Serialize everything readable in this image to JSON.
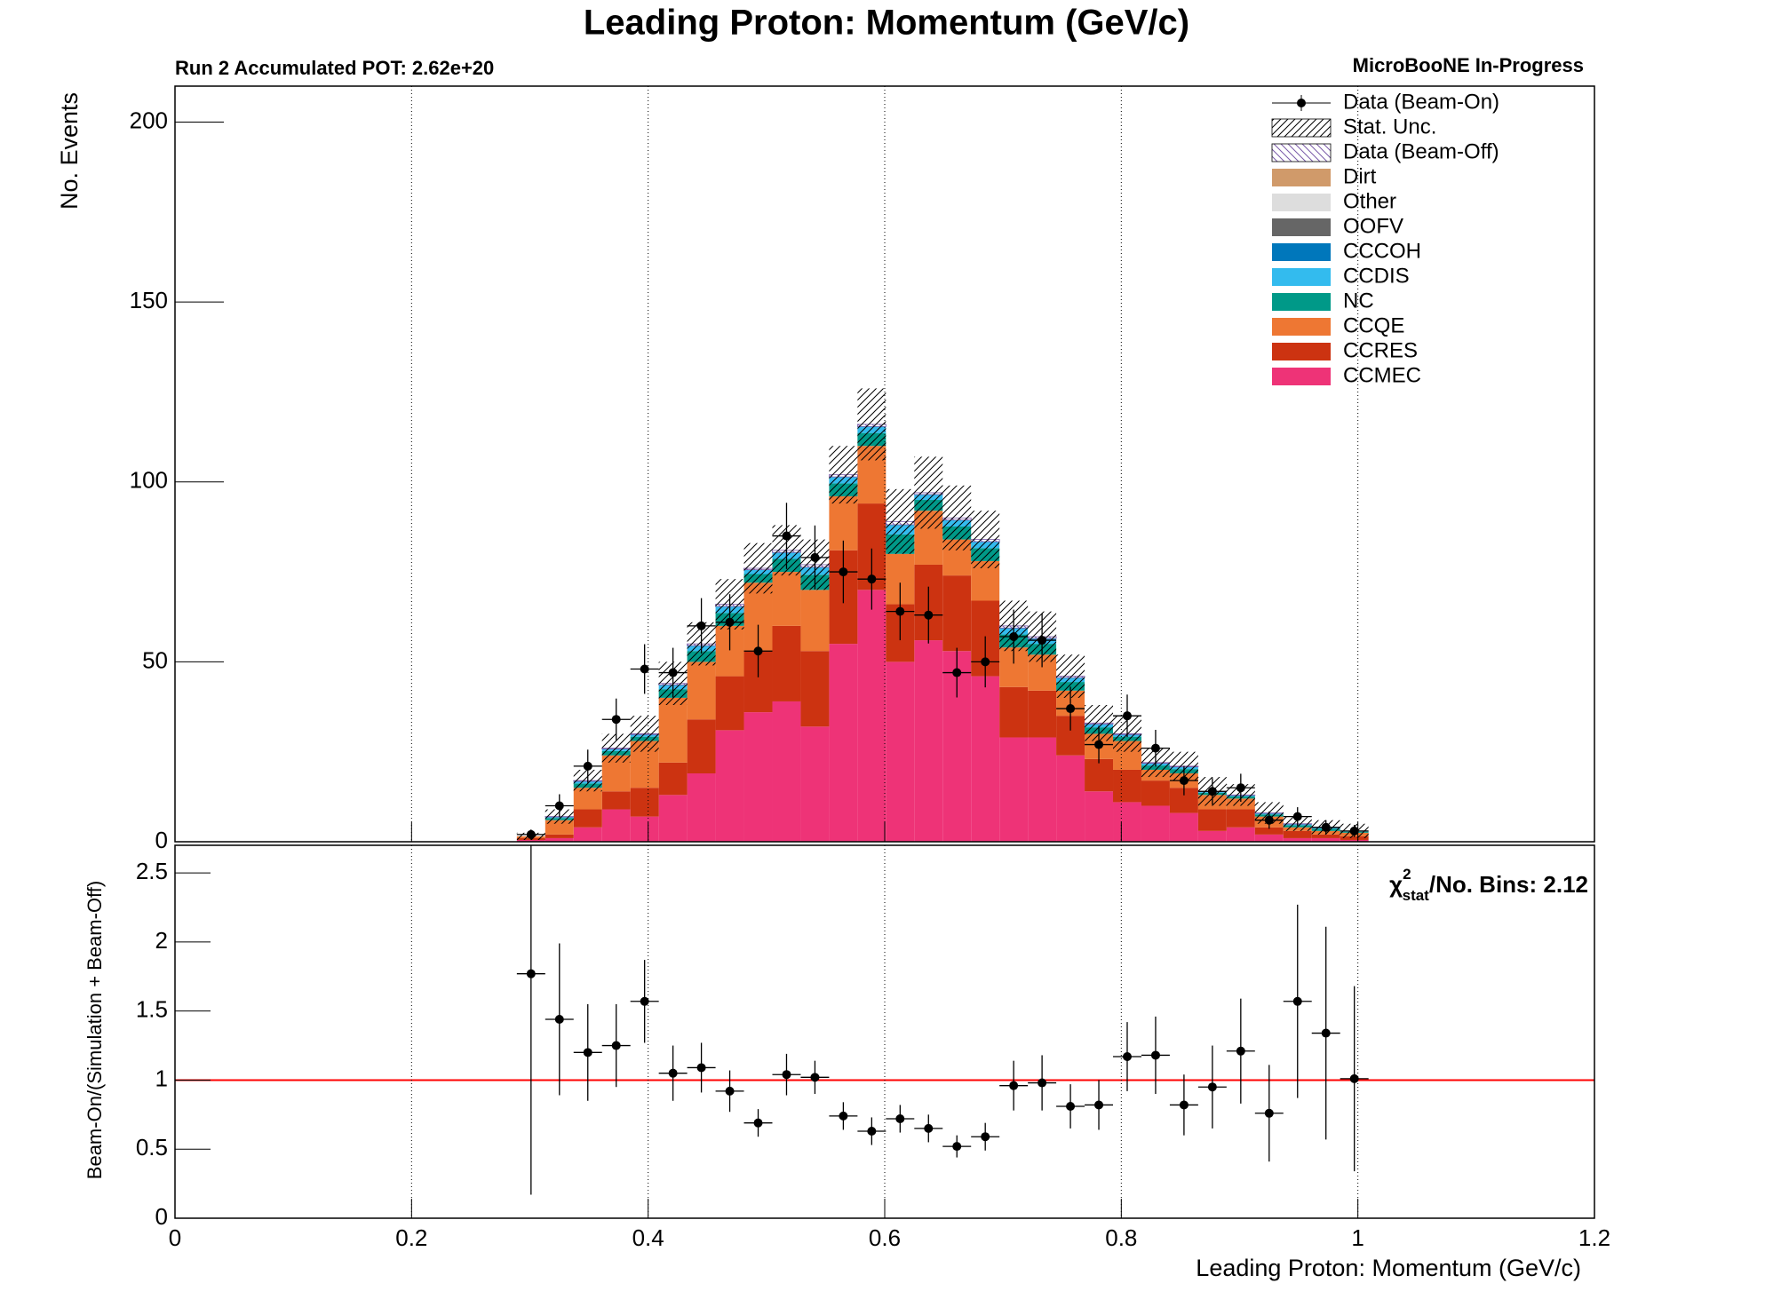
{
  "chart_data": {
    "type": "stacked_histogram",
    "title": "Leading Proton: Momentum (GeV/c)",
    "subtitle": "Run 2 Accumulated POT: 2.62e+20",
    "label": "MicroBooNE In-Progress",
    "xlabel": "Leading Proton: Momentum (GeV/c)",
    "ylabel": "No. Events",
    "xlim": [
      0,
      1.2
    ],
    "xticks": [
      0,
      0.2,
      0.4,
      0.6,
      0.8,
      1,
      1.2
    ],
    "ylim": [
      0,
      210
    ],
    "yticks": [
      0,
      50,
      100,
      150,
      200
    ],
    "grid": true,
    "bins": [
      0.289,
      0.313,
      0.337,
      0.361,
      0.385,
      0.409,
      0.433,
      0.457,
      0.481,
      0.505,
      0.529,
      0.553,
      0.577,
      0.601,
      0.625,
      0.649,
      0.673,
      0.697,
      0.721,
      0.745,
      0.769,
      0.793,
      0.817,
      0.841,
      0.865,
      0.889,
      0.913,
      0.937,
      0.961,
      0.985,
      1.009
    ],
    "series": [
      {
        "name": "CCMEC",
        "color": "#ee3377",
        "values": [
          0.5,
          1,
          4,
          9,
          7,
          13,
          19,
          31,
          36,
          39,
          32,
          55,
          70,
          50,
          56,
          53,
          46,
          29,
          29,
          24,
          14,
          11,
          10,
          8,
          3,
          4,
          2,
          1,
          1,
          0.5
        ]
      },
      {
        "name": "CCRES",
        "color": "#cc3311",
        "values": [
          0.5,
          1,
          5,
          5,
          8,
          9,
          15,
          15,
          17,
          21,
          21,
          26,
          24,
          16,
          21,
          21,
          21,
          14,
          13,
          11,
          9,
          9,
          7,
          7,
          6,
          5,
          2,
          2,
          1,
          1
        ]
      },
      {
        "name": "CCQE",
        "color": "#ee7733",
        "values": [
          0.5,
          4,
          6,
          10,
          13,
          18,
          16,
          14,
          19,
          15,
          17,
          15,
          16,
          14,
          15,
          10,
          11,
          11,
          10,
          7,
          7,
          8,
          3,
          4,
          4,
          3,
          3,
          1,
          1,
          1
        ]
      },
      {
        "name": "NC",
        "color": "#009988",
        "values": [
          0,
          0.6,
          1.2,
          1.2,
          1.2,
          2.4,
          3,
          3.6,
          2.4,
          3.6,
          4.2,
          3.6,
          3.6,
          5.4,
          3,
          3.6,
          3.6,
          3.6,
          3,
          2.4,
          1.8,
          1.2,
          1.2,
          1.2,
          0.6,
          0.6,
          0.6,
          0.6,
          0.6,
          0.3
        ]
      },
      {
        "name": "CCDIS",
        "color": "#33bbee",
        "values": [
          0,
          0.3,
          0.6,
          0.6,
          0.6,
          1.2,
          1.5,
          1.8,
          1.2,
          1.8,
          2.1,
          1.8,
          1.8,
          2.7,
          1.5,
          1.8,
          1.8,
          1.8,
          1.5,
          1.2,
          0.9,
          0.6,
          0.6,
          0.6,
          0.3,
          0.3,
          0.3,
          0.3,
          0.3,
          0.2
        ]
      },
      {
        "name": "CCCOH",
        "color": "#0077bb",
        "values": [
          0,
          0,
          0,
          0,
          0,
          0,
          0,
          0,
          0,
          0,
          0,
          0,
          0,
          0,
          0,
          0,
          0,
          0,
          0,
          0,
          0,
          0,
          0,
          0,
          0,
          0,
          0,
          0,
          0,
          0
        ]
      },
      {
        "name": "OOFV",
        "color": "#666666",
        "values": [
          0,
          0,
          0,
          0,
          0,
          0,
          0,
          0,
          0,
          0,
          0,
          0,
          0,
          0,
          0,
          0,
          0,
          0,
          0,
          0,
          0,
          0,
          0,
          0,
          0,
          0,
          0,
          0,
          0,
          0
        ]
      },
      {
        "name": "Other",
        "color": "#dddddd",
        "values": [
          0,
          0,
          0,
          0,
          0,
          0,
          0,
          0,
          0,
          0,
          0,
          0,
          0,
          0,
          0,
          0,
          0,
          0,
          0,
          0,
          0,
          0,
          0,
          0,
          0,
          0,
          0,
          0,
          0,
          0
        ]
      },
      {
        "name": "Dirt",
        "color": "#d09a6a",
        "values": [
          0,
          0,
          0,
          0,
          0,
          0,
          0,
          0,
          0,
          0,
          0,
          0,
          0,
          0,
          0,
          0,
          0,
          0,
          0,
          0,
          0,
          0,
          0,
          0,
          0,
          0,
          0,
          0,
          0,
          0
        ]
      },
      {
        "name": "Data (Beam-Off)",
        "color": "#7a5aa8",
        "pattern": "hatch",
        "values": [
          0,
          0.1,
          0.2,
          0.2,
          0.2,
          0.4,
          0.5,
          0.6,
          0.4,
          0.6,
          0.7,
          0.6,
          0.6,
          0.9,
          0.5,
          0.6,
          0.6,
          0.6,
          0.5,
          0.4,
          0.3,
          0.2,
          0.2,
          0.2,
          0.1,
          0.1,
          0.1,
          0.1,
          0.1,
          0
        ]
      }
    ],
    "stat_unc": {
      "name": "Stat. Unc.",
      "color": "#000000",
      "pattern": "hatch",
      "errors": [
        1,
        2,
        3,
        4,
        5,
        6,
        6,
        7,
        7,
        7,
        7,
        8,
        10,
        9,
        10,
        9,
        8,
        7,
        7,
        6,
        5,
        5,
        4,
        4,
        4,
        3,
        3,
        2,
        2,
        2
      ]
    },
    "data": {
      "name": "Data (Beam-On)",
      "color": "#000000",
      "values": [
        2,
        10,
        21,
        34,
        48,
        47,
        60,
        61,
        53,
        85,
        79,
        75,
        73,
        64,
        63,
        47,
        50,
        57,
        56,
        37,
        27,
        35,
        26,
        17,
        14,
        15,
        6,
        7,
        4,
        3
      ],
      "errors": [
        1.4,
        3.2,
        4.6,
        5.8,
        6.9,
        6.9,
        7.7,
        7.8,
        7.3,
        9.2,
        8.9,
        8.7,
        8.5,
        8,
        7.9,
        6.9,
        7.1,
        7.5,
        7.5,
        6.1,
        5.2,
        5.9,
        5.1,
        4.1,
        3.7,
        3.9,
        2.4,
        2.6,
        2,
        1.7
      ]
    },
    "ratio_panel": {
      "ylabel": "Beam-On/(Simulation + Beam-Off)",
      "ylim": [
        0,
        2.7
      ],
      "yticks": [
        0,
        0.5,
        1,
        1.5,
        2,
        2.5
      ],
      "reference": 1,
      "reference_color": "#ff0000",
      "chi2": {
        "symbol": "χ",
        "sup": "2",
        "sub": "stat",
        "text": "/No. Bins: 2.12"
      },
      "values": [
        1.77,
        1.44,
        1.2,
        1.25,
        1.57,
        1.05,
        1.09,
        0.92,
        0.69,
        1.04,
        1.02,
        0.74,
        0.63,
        0.72,
        0.65,
        0.52,
        0.59,
        0.96,
        0.98,
        0.81,
        0.82,
        1.17,
        1.18,
        0.82,
        0.95,
        1.21,
        0.76,
        1.57,
        1.34,
        1.01
      ],
      "errors": [
        1.6,
        0.55,
        0.35,
        0.3,
        0.3,
        0.2,
        0.18,
        0.15,
        0.1,
        0.15,
        0.12,
        0.1,
        0.1,
        0.1,
        0.1,
        0.08,
        0.1,
        0.18,
        0.2,
        0.16,
        0.18,
        0.25,
        0.28,
        0.22,
        0.3,
        0.38,
        0.35,
        0.7,
        0.77,
        0.67
      ]
    }
  }
}
